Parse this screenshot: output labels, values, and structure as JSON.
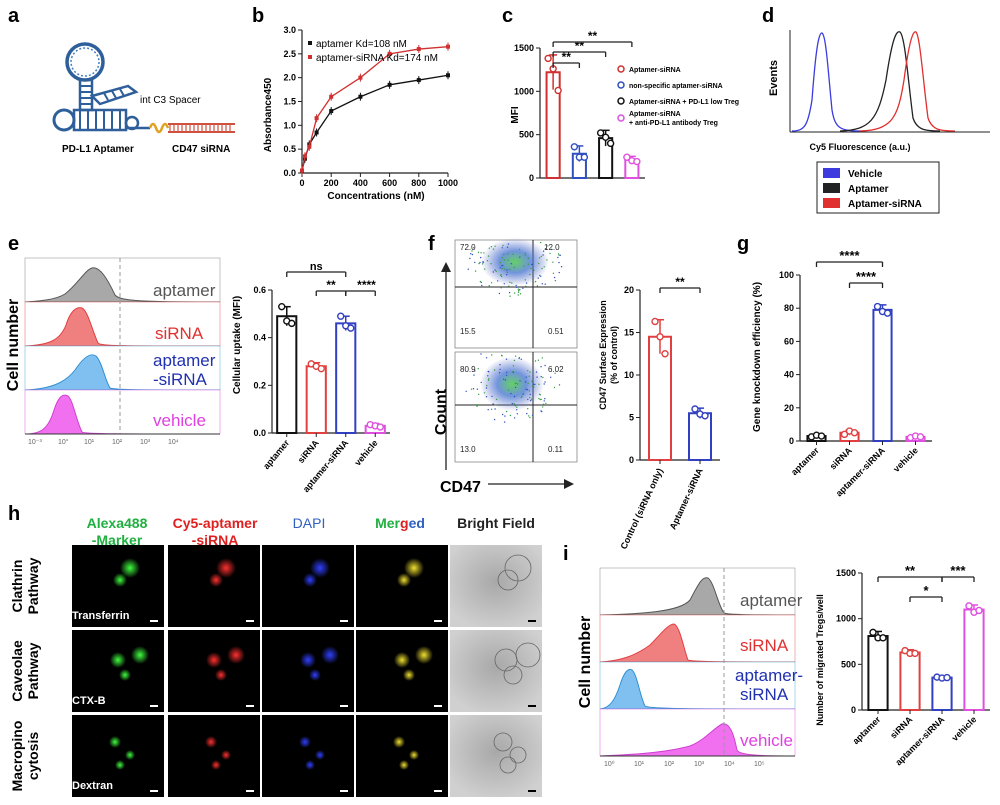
{
  "panels": {
    "a": {
      "letter": "a",
      "spacer_label": "int C3 Spacer",
      "aptamer_label": "PD-L1 Aptamer",
      "sirna_label": "CD47 siRNA",
      "colors": {
        "strand": "#2f5f9a",
        "spacer": "#e0a020",
        "sirna": "#d05040"
      }
    },
    "b": {
      "letter": "b",
      "xlabel": "Concentrations (nM)",
      "ylabel": "Absorbance450",
      "legend": [
        "aptamer Kd=108 nM",
        "aptamer-siRNA Kd=174 nM"
      ],
      "xticks": [
        "0",
        "200",
        "400",
        "600",
        "800",
        "1000"
      ],
      "yticks": [
        "0.0",
        "0.5",
        "1.0",
        "1.5",
        "2.0",
        "2.5",
        "3.0"
      ]
    },
    "c": {
      "letter": "c",
      "ylabel": "MFI",
      "yticks": [
        "0",
        "500",
        "1000",
        "1500"
      ],
      "sig": [
        "**",
        "**",
        "**"
      ],
      "legend": [
        "Aptamer-siRNA",
        "non-specific aptamer-siRNA",
        "Aptamer-siRNA + PD-L1 low Treg",
        "Aptamer-siRNA",
        "+ anti-PD-L1 antibody Treg"
      ]
    },
    "d": {
      "letter": "d",
      "ylabel": "Events",
      "xlabel": "Cy5 Fluorescence (a.u.)",
      "legend": [
        "Vehicle",
        "Aptamer",
        "Aptamer-siRNA"
      ],
      "colors": {
        "vehicle": "#3b3be0",
        "aptamer": "#222222",
        "aptamer_sirna": "#e03030"
      }
    },
    "e": {
      "letter": "e",
      "ylabel_hist": "Cell number",
      "hist_labels": [
        "aptamer",
        "siRNA",
        "aptamer",
        "-siRNA",
        "vehicle"
      ],
      "bar_ylabel": "Cellular uptake (MFI)",
      "yticks": [
        "0.0",
        "0.2",
        "0.4",
        "0.6"
      ],
      "categories": [
        "aptamer",
        "siRNA",
        "aptamer-siRNA",
        "vehicle"
      ],
      "sig": [
        "ns",
        "**",
        "****"
      ],
      "hist_xticks": [
        "10⁻³",
        "10°",
        "10¹",
        "10²",
        "10³",
        "10⁴"
      ]
    },
    "f": {
      "letter": "f",
      "quad_top": [
        "72.0",
        "12.0",
        "15.5",
        "0.51"
      ],
      "quad_bottom": [
        "80.9",
        "6.02",
        "13.0",
        "0.11"
      ],
      "ylabel": "Count",
      "xlabel": "CD47",
      "bar_ylabel": "CD47 Surface Expression",
      "bar_ylabel2": "(% of control)",
      "yticks": [
        "0",
        "5",
        "10",
        "15",
        "20"
      ],
      "categories": [
        "Control (siRNA only)",
        "Aptamer-siRNA"
      ],
      "sig": [
        "**"
      ]
    },
    "g": {
      "letter": "g",
      "ylabel": "Gene knockdown efficiency (%)",
      "yticks": [
        "0",
        "20",
        "40",
        "60",
        "80",
        "100"
      ],
      "categories": [
        "aptamer",
        "siRNA",
        "aptamer-siRNA",
        "vehicle"
      ],
      "sig": [
        "****",
        "****"
      ]
    },
    "h": {
      "letter": "h",
      "col_headers": [
        "Alexa488",
        "-Marker",
        "Cy5-aptamer",
        "-siRNA",
        "DAPI",
        "Merged",
        "Bright Field"
      ],
      "merged_parts": [
        "Mer",
        "g",
        "ed"
      ],
      "row_labels": [
        [
          "Clathrin",
          "Pathway"
        ],
        [
          "Caveolae",
          "Pathway"
        ],
        [
          "Macropino",
          "cytosis"
        ]
      ],
      "markers": [
        "Transferrin",
        "CTX-B",
        "Dextran"
      ]
    },
    "i": {
      "letter": "i",
      "ylabel_hist": "Cell number",
      "hist_labels": [
        "aptamer",
        "siRNA",
        "aptamer-",
        "siRNA",
        "vehicle"
      ],
      "hist_xticks": [
        "10⁰",
        "10¹",
        "10²",
        "10³",
        "10⁴",
        "10⁵"
      ],
      "bar_ylabel": "Number of migrated Tregs/well",
      "yticks": [
        "0",
        "500",
        "1000",
        "1500"
      ],
      "categories": [
        "aptamer",
        "siRNA",
        "aptamer-siRNA",
        "vehicle"
      ],
      "sig": [
        "**",
        "*",
        "***"
      ]
    }
  },
  "chart_data": [
    {
      "panel": "b",
      "type": "line",
      "x": [
        0,
        20,
        50,
        100,
        200,
        400,
        600,
        800,
        1000
      ],
      "series": [
        {
          "name": "aptamer Kd=108 nM",
          "values": [
            0.05,
            0.3,
            0.6,
            0.85,
            1.3,
            1.6,
            1.85,
            1.95,
            2.05
          ],
          "color": "#111111"
        },
        {
          "name": "aptamer-siRNA Kd=174 nM",
          "values": [
            0.05,
            0.35,
            0.55,
            1.15,
            1.6,
            2.0,
            2.5,
            2.6,
            2.65
          ],
          "color": "#d03030"
        }
      ],
      "xlabel": "Concentrations (nM)",
      "ylabel": "Absorbance450",
      "xlim": [
        0,
        1000
      ],
      "ylim": [
        0,
        3.0
      ]
    },
    {
      "panel": "c",
      "type": "bar",
      "categories": [
        "Aptamer-siRNA",
        "non-specific aptamer-siRNA",
        "Aptamer-siRNA + PD-L1 low Treg",
        "Aptamer-siRNA + anti-PD-L1 antibody Treg"
      ],
      "values": [
        1220,
        280,
        460,
        210
      ],
      "errors": [
        200,
        90,
        90,
        40
      ],
      "points": [
        [
          1380,
          1260,
          1010
        ],
        [
          360,
          240,
          240
        ],
        [
          520,
          470,
          400
        ],
        [
          240,
          200,
          190
        ]
      ],
      "colors": [
        "#d03030",
        "#3050c0",
        "#111111",
        "#e050e0"
      ],
      "ylabel": "MFI",
      "ylim": [
        0,
        1500
      ]
    },
    {
      "panel": "e",
      "type": "bar",
      "categories": [
        "aptamer",
        "siRNA",
        "aptamer-siRNA",
        "vehicle"
      ],
      "values": [
        0.49,
        0.28,
        0.46,
        0.03
      ],
      "errors": [
        0.04,
        0.015,
        0.03,
        0.01
      ],
      "points": [
        [
          0.53,
          0.47,
          0.46
        ],
        [
          0.29,
          0.28,
          0.27
        ],
        [
          0.49,
          0.45,
          0.44
        ],
        [
          0.035,
          0.03,
          0.025
        ]
      ],
      "colors": [
        "#111111",
        "#e04040",
        "#3040c0",
        "#e050e0"
      ],
      "ylabel": "Cellular uptake (MFI)",
      "ylim": [
        0,
        0.6
      ]
    },
    {
      "panel": "f",
      "type": "bar",
      "categories": [
        "Control (siRNA only)",
        "Aptamer-siRNA"
      ],
      "values": [
        14.5,
        5.5
      ],
      "errors": [
        2.0,
        0.6
      ],
      "points": [
        [
          16.3,
          14.5,
          12.5
        ],
        [
          6.0,
          5.4,
          5.2
        ]
      ],
      "colors": [
        "#e04040",
        "#3040c0"
      ],
      "ylabel": "CD47 Surface Expression (% of control)",
      "ylim": [
        0,
        20
      ]
    },
    {
      "panel": "g",
      "type": "bar",
      "categories": [
        "aptamer",
        "siRNA",
        "aptamer-siRNA",
        "vehicle"
      ],
      "values": [
        3,
        5,
        79,
        2.5
      ],
      "errors": [
        1,
        1.5,
        3,
        1
      ],
      "points": [
        [
          2.5,
          3.5,
          3
        ],
        [
          4,
          6,
          5
        ],
        [
          81,
          78,
          77
        ],
        [
          2,
          3,
          2.5
        ]
      ],
      "colors": [
        "#111111",
        "#e04040",
        "#3040c0",
        "#e050e0"
      ],
      "ylabel": "Gene knockdown efficiency (%)",
      "ylim": [
        0,
        100
      ]
    },
    {
      "panel": "i",
      "type": "bar",
      "categories": [
        "aptamer",
        "siRNA",
        "aptamer-siRNA",
        "vehicle"
      ],
      "values": [
        810,
        630,
        355,
        1100
      ],
      "errors": [
        50,
        30,
        15,
        50
      ],
      "points": [
        [
          850,
          790,
          790
        ],
        [
          650,
          620,
          620
        ],
        [
          360,
          350,
          355
        ],
        [
          1140,
          1070,
          1090
        ]
      ],
      "colors": [
        "#111111",
        "#e04040",
        "#3040c0",
        "#e050e0"
      ],
      "ylabel": "Number of migrated Tregs/well",
      "ylim": [
        0,
        1500
      ]
    }
  ]
}
